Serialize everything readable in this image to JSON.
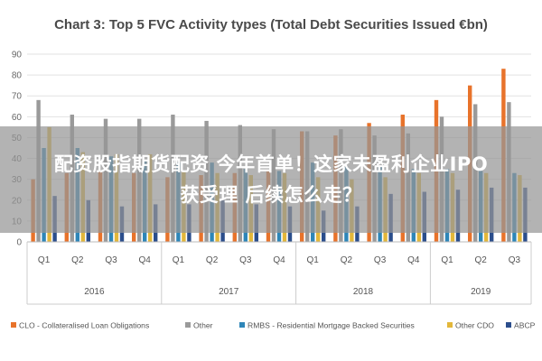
{
  "chart_data": {
    "type": "bar",
    "title": "Chart 3: Top 5 FVC Activity types (Total Debt Securities Issued €bn)",
    "xlabel": "",
    "ylabel": "",
    "ylim": [
      0,
      90
    ],
    "yticks": [
      0,
      10,
      20,
      30,
      40,
      50,
      60,
      70,
      80,
      90
    ],
    "grid": true,
    "legend_position": "bottom",
    "categories": [
      "Q1",
      "Q2",
      "Q3",
      "Q4",
      "Q1",
      "Q2",
      "Q3",
      "Q4",
      "Q1",
      "Q2",
      "Q3",
      "Q4",
      "Q1",
      "Q2",
      "Q3"
    ],
    "groups": [
      {
        "label": "2016",
        "count": 4
      },
      {
        "label": "2017",
        "count": 4
      },
      {
        "label": "2018",
        "count": 4
      },
      {
        "label": "2019",
        "count": 3
      }
    ],
    "series": [
      {
        "name": "CLO - Collateralised Loan Obligations",
        "color": "#e8732b",
        "values": [
          30,
          33,
          34,
          33,
          31,
          32,
          33,
          34,
          53,
          51,
          57,
          61,
          68,
          75,
          83
        ]
      },
      {
        "name": "Other",
        "color": "#9a9a9a",
        "values": [
          68,
          61,
          59,
          59,
          61,
          58,
          56,
          54,
          53,
          54,
          51,
          52,
          60,
          66,
          67
        ]
      },
      {
        "name": "RMBS - Residential Mortgage Backed Securities",
        "color": "#2e86b8",
        "values": [
          45,
          45,
          41,
          39,
          38,
          38,
          35,
          34,
          38,
          36,
          36,
          35,
          35,
          34,
          33
        ]
      },
      {
        "name": "Other CDO",
        "color": "#e3b73a",
        "values": [
          55,
          43,
          42,
          42,
          34,
          33,
          32,
          33,
          31,
          30,
          31,
          33,
          33,
          33,
          32
        ]
      },
      {
        "name": "ABCP",
        "color": "#2b4e8c",
        "values": [
          22,
          20,
          17,
          18,
          18,
          20,
          18,
          17,
          15,
          17,
          23,
          24,
          25,
          26,
          26
        ]
      }
    ]
  },
  "banner": {
    "line1": "配资股指期货配资 今年首单！这家未盈利企业IPO",
    "line2": "获受理 后续怎么走？"
  }
}
